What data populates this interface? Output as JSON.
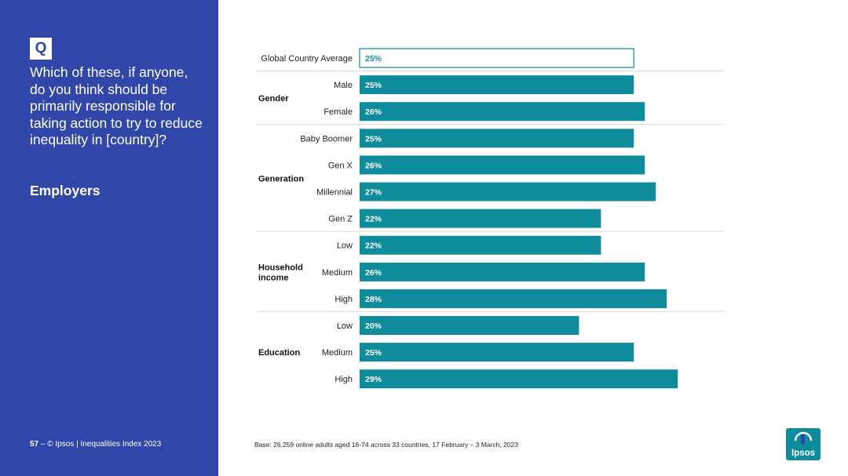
{
  "question_badge": "Q",
  "question_text": "Which of these, if anyone, do you think should be primarily responsible for taking action to try to reduce inequality in [country]?",
  "topic": "Employers",
  "footer": {
    "page_number": "57",
    "separator": "–",
    "source": "© Ipsos | Inequalities Index 2023"
  },
  "base_note": "Base: 26,259 online adults aged 16-74 across 33 countries, 17 February – 3 March, 2023",
  "logo_text": "Ipsos",
  "colors": {
    "panel": "#3046a8",
    "bar": "#0f8c9c",
    "highlight_outline": "#0f8c9c"
  },
  "chart_data": {
    "type": "bar",
    "orientation": "horizontal",
    "value_unit": "%",
    "xlim": [
      0,
      34
    ],
    "groups": [
      {
        "name": "",
        "rows": [
          {
            "label": "Global Country Average",
            "value": 25,
            "value_label": "25%",
            "highlight": true
          }
        ]
      },
      {
        "name": "Gender",
        "rows": [
          {
            "label": "Male",
            "value": 25,
            "value_label": "25%"
          },
          {
            "label": "Female",
            "value": 26,
            "value_label": "26%"
          }
        ]
      },
      {
        "name": "Generation",
        "rows": [
          {
            "label": "Baby Boomer",
            "value": 25,
            "value_label": "25%"
          },
          {
            "label": "Gen X",
            "value": 26,
            "value_label": "26%"
          },
          {
            "label": "Millennial",
            "value": 27,
            "value_label": "27%"
          },
          {
            "label": "Gen Z",
            "value": 22,
            "value_label": "22%"
          }
        ]
      },
      {
        "name": "Household income",
        "rows": [
          {
            "label": "Low",
            "value": 22,
            "value_label": "22%"
          },
          {
            "label": "Medium",
            "value": 26,
            "value_label": "26%"
          },
          {
            "label": "High",
            "value": 28,
            "value_label": "28%"
          }
        ]
      },
      {
        "name": "Education",
        "rows": [
          {
            "label": "Low",
            "value": 20,
            "value_label": "20%"
          },
          {
            "label": "Medium",
            "value": 25,
            "value_label": "25%"
          },
          {
            "label": "High",
            "value": 29,
            "value_label": "29%"
          }
        ]
      }
    ]
  }
}
